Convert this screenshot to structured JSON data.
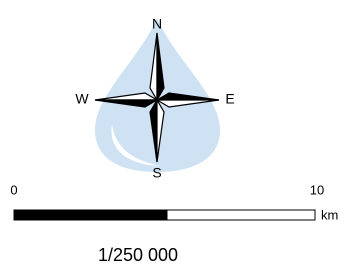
{
  "compass": {
    "north": "N",
    "south": "S",
    "east": "E",
    "west": "W"
  },
  "scale_bar": {
    "start_label": "0",
    "end_label": "10",
    "unit": "km"
  },
  "scale_text": "1/250 000"
}
